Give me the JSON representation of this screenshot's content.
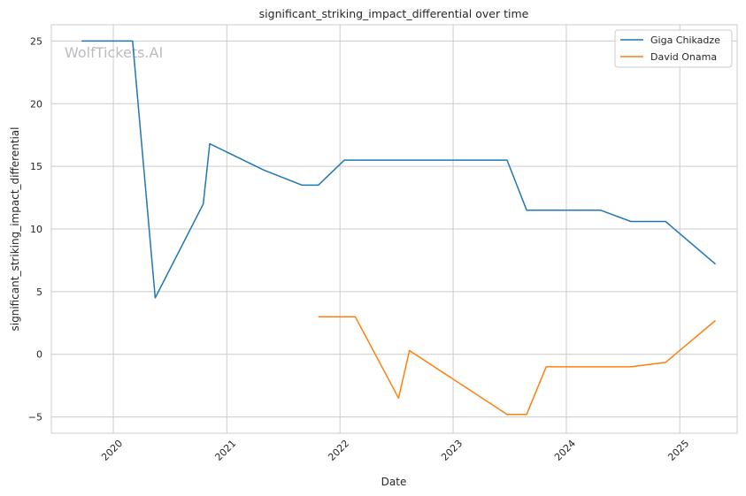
{
  "chart_data": {
    "type": "line",
    "title": "significant_striking_impact_differential over time",
    "xlabel": "Date",
    "ylabel": "significant_striking_impact_differential",
    "watermark": "WolfTickets.AI",
    "xlim": [
      "2019-06-15",
      "2025-07-05"
    ],
    "ylim": [
      -6.3,
      26.3
    ],
    "x_ticks": [
      "2020-01-01",
      "2021-01-01",
      "2022-01-01",
      "2023-01-01",
      "2024-01-01",
      "2025-01-01"
    ],
    "x_tick_labels": [
      "2020",
      "2021",
      "2022",
      "2023",
      "2024",
      "2025"
    ],
    "y_ticks": [
      -5,
      0,
      5,
      10,
      15,
      20,
      25
    ],
    "y_tick_labels": [
      "−5",
      "0",
      "5",
      "10",
      "15",
      "20",
      "25"
    ],
    "grid": true,
    "legend_position": "top-right",
    "series": [
      {
        "name": "Giga Chikadze",
        "color": "#1f77b4",
        "points": [
          [
            "2019-09-21",
            25.0
          ],
          [
            "2020-03-03",
            25.0
          ],
          [
            "2020-05-15",
            4.5
          ],
          [
            "2020-10-17",
            12.0
          ],
          [
            "2020-11-07",
            16.8
          ],
          [
            "2021-05-01",
            14.7
          ],
          [
            "2021-09-01",
            13.5
          ],
          [
            "2021-10-23",
            13.5
          ],
          [
            "2022-01-15",
            15.5
          ],
          [
            "2023-06-24",
            15.5
          ],
          [
            "2023-08-26",
            11.5
          ],
          [
            "2024-04-20",
            11.5
          ],
          [
            "2024-07-27",
            10.6
          ],
          [
            "2024-11-16",
            10.6
          ],
          [
            "2025-04-26",
            7.2
          ]
        ]
      },
      {
        "name": "David Onama",
        "color": "#ff7f0e",
        "points": [
          [
            "2021-10-23",
            3.0
          ],
          [
            "2022-02-19",
            3.0
          ],
          [
            "2022-07-09",
            -3.5
          ],
          [
            "2022-08-13",
            0.3
          ],
          [
            "2023-06-24",
            -4.8
          ],
          [
            "2023-08-26",
            -4.8
          ],
          [
            "2023-10-28",
            -1.0
          ],
          [
            "2024-07-27",
            -1.0
          ],
          [
            "2024-11-16",
            -0.65
          ],
          [
            "2025-04-26",
            2.7
          ]
        ]
      }
    ]
  }
}
